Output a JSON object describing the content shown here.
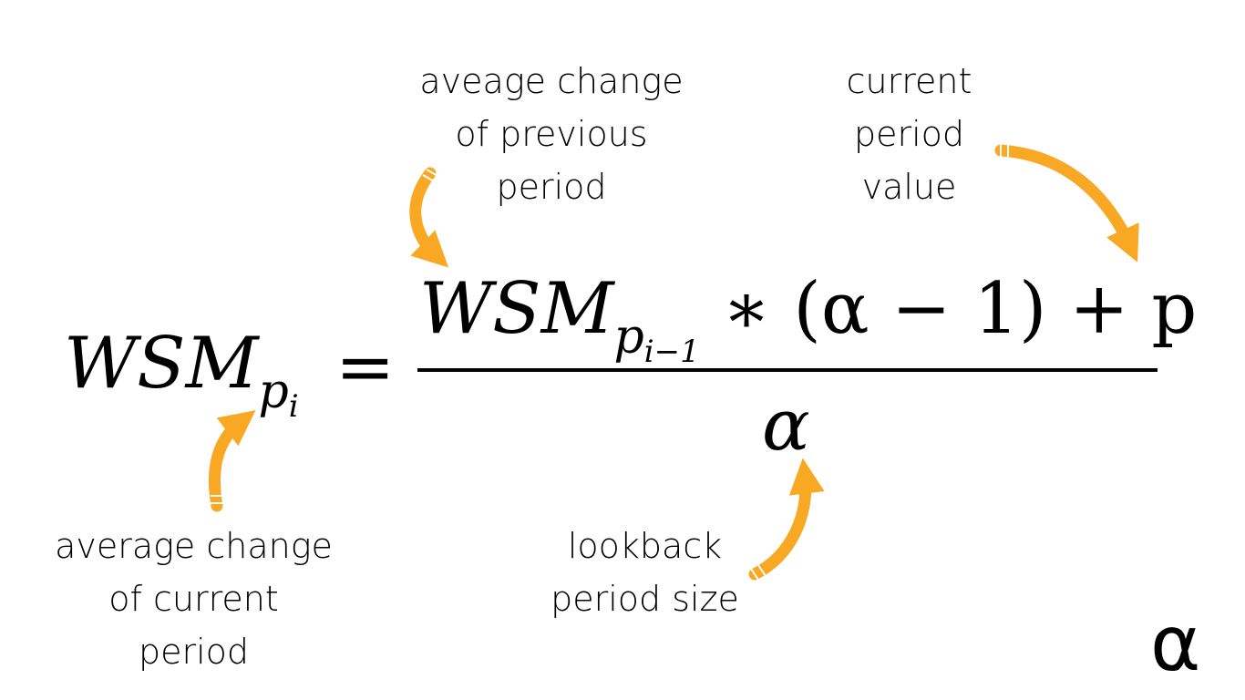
{
  "annotations": {
    "previous_average": {
      "line1": "aveage change",
      "line2": "of previous",
      "line3": "period"
    },
    "current_value": {
      "line1": "current",
      "line2": "period",
      "line3": "value"
    },
    "current_average": {
      "line1": "average change",
      "line2": "of current",
      "line3": "period"
    },
    "lookback_size": {
      "line1": "lookback",
      "line2": "period size"
    }
  },
  "formula": {
    "lhs_base": "WSM",
    "lhs_sub": "p",
    "lhs_subsub": "i",
    "equals": "=",
    "num_base": "WSM",
    "num_sub": "p",
    "num_subsub": "i−1",
    "num_rest": " ∗ (α − 1) + p",
    "denominator": "α"
  },
  "corner_symbol": "α",
  "colors": {
    "arrow": "#f9a823",
    "text": "#000000",
    "background": "#ffffff"
  }
}
